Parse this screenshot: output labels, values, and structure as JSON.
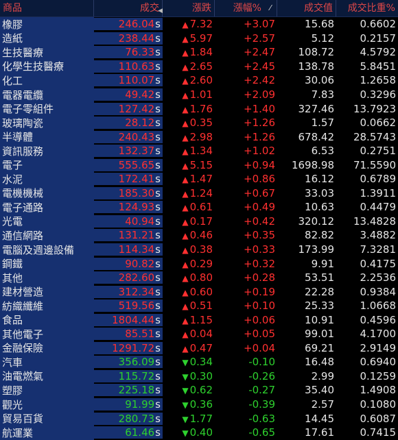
{
  "header": {
    "name": "商品",
    "price": "成交",
    "change": "漲跌",
    "pct": "漲幅%",
    "volume": "成交值",
    "ratio": "成交比重%"
  },
  "price_suffix": "s",
  "colors": {
    "up": "#ff3030",
    "down": "#2ed12e",
    "header_text": "#e04848",
    "highlight": "#163070"
  },
  "rows": [
    {
      "name": "橡膠",
      "price": "246.04",
      "dir": "up",
      "change": "7.32",
      "pct": "+3.07",
      "volume": "15.68",
      "ratio": "0.6602"
    },
    {
      "name": "造紙",
      "price": "238.44",
      "dir": "up",
      "change": "5.97",
      "pct": "+2.57",
      "volume": "5.12",
      "ratio": "0.2157"
    },
    {
      "name": "生技醫療",
      "price": "76.33",
      "dir": "up",
      "change": "1.84",
      "pct": "+2.47",
      "volume": "108.72",
      "ratio": "4.5792"
    },
    {
      "name": "化學生技醫療",
      "price": "110.63",
      "dir": "up",
      "change": "2.65",
      "pct": "+2.45",
      "volume": "138.78",
      "ratio": "5.8451"
    },
    {
      "name": "化工",
      "price": "110.07",
      "dir": "up",
      "change": "2.60",
      "pct": "+2.42",
      "volume": "30.06",
      "ratio": "1.2658"
    },
    {
      "name": "電器電纜",
      "price": "49.42",
      "dir": "up",
      "change": "1.01",
      "pct": "+2.09",
      "volume": "7.83",
      "ratio": "0.3296"
    },
    {
      "name": "電子零組件",
      "price": "127.42",
      "dir": "up",
      "change": "1.76",
      "pct": "+1.40",
      "volume": "327.46",
      "ratio": "13.7923"
    },
    {
      "name": "玻璃陶瓷",
      "price": "28.12",
      "dir": "up",
      "change": "0.35",
      "pct": "+1.26",
      "volume": "1.57",
      "ratio": "0.0662"
    },
    {
      "name": "半導體",
      "price": "240.43",
      "dir": "up",
      "change": "2.98",
      "pct": "+1.26",
      "volume": "678.42",
      "ratio": "28.5743"
    },
    {
      "name": "資訊服務",
      "price": "132.37",
      "dir": "up",
      "change": "1.34",
      "pct": "+1.02",
      "volume": "6.53",
      "ratio": "0.2751"
    },
    {
      "name": "電子",
      "price": "555.65",
      "dir": "up",
      "change": "5.15",
      "pct": "+0.94",
      "volume": "1698.98",
      "ratio": "71.5590"
    },
    {
      "name": "水泥",
      "price": "172.41",
      "dir": "up",
      "change": "1.47",
      "pct": "+0.86",
      "volume": "16.12",
      "ratio": "0.6789"
    },
    {
      "name": "電機機械",
      "price": "185.30",
      "dir": "up",
      "change": "1.24",
      "pct": "+0.67",
      "volume": "33.03",
      "ratio": "1.3911"
    },
    {
      "name": "電子通路",
      "price": "124.93",
      "dir": "up",
      "change": "0.61",
      "pct": "+0.49",
      "volume": "10.63",
      "ratio": "0.4479"
    },
    {
      "name": "光電",
      "price": "40.94",
      "dir": "up",
      "change": "0.17",
      "pct": "+0.42",
      "volume": "320.12",
      "ratio": "13.4828"
    },
    {
      "name": "通信網路",
      "price": "131.21",
      "dir": "up",
      "change": "0.46",
      "pct": "+0.35",
      "volume": "82.82",
      "ratio": "3.4882"
    },
    {
      "name": "電腦及週邊設備",
      "price": "114.34",
      "dir": "up",
      "change": "0.38",
      "pct": "+0.33",
      "volume": "173.99",
      "ratio": "7.3281"
    },
    {
      "name": "鋼鐵",
      "price": "90.82",
      "dir": "up",
      "change": "0.29",
      "pct": "+0.32",
      "volume": "9.91",
      "ratio": "0.4175"
    },
    {
      "name": "其他",
      "price": "282.60",
      "dir": "up",
      "change": "0.80",
      "pct": "+0.28",
      "volume": "53.51",
      "ratio": "2.2536"
    },
    {
      "name": "建材營造",
      "price": "312.34",
      "dir": "up",
      "change": "0.60",
      "pct": "+0.19",
      "volume": "22.28",
      "ratio": "0.9384"
    },
    {
      "name": "紡織纖維",
      "price": "519.56",
      "dir": "up",
      "change": "0.51",
      "pct": "+0.10",
      "volume": "25.33",
      "ratio": "1.0668"
    },
    {
      "name": "食品",
      "price": "1804.44",
      "dir": "up",
      "change": "1.15",
      "pct": "+0.06",
      "volume": "10.91",
      "ratio": "0.4596"
    },
    {
      "name": "其他電子",
      "price": "85.51",
      "dir": "up",
      "change": "0.04",
      "pct": "+0.05",
      "volume": "99.01",
      "ratio": "4.1700"
    },
    {
      "name": "金融保險",
      "price": "1291.72",
      "dir": "up",
      "change": "0.47",
      "pct": "+0.04",
      "volume": "69.21",
      "ratio": "2.9149"
    },
    {
      "name": "汽車",
      "price": "356.09",
      "dir": "down",
      "change": "0.34",
      "pct": "-0.10",
      "volume": "16.48",
      "ratio": "0.6940"
    },
    {
      "name": "油電燃氣",
      "price": "115.72",
      "dir": "down",
      "change": "0.30",
      "pct": "-0.26",
      "volume": "2.99",
      "ratio": "0.1259"
    },
    {
      "name": "塑膠",
      "price": "225.18",
      "dir": "down",
      "change": "0.62",
      "pct": "-0.27",
      "volume": "35.40",
      "ratio": "1.4908"
    },
    {
      "name": "觀光",
      "price": "91.99",
      "dir": "down",
      "change": "0.36",
      "pct": "-0.39",
      "volume": "2.57",
      "ratio": "0.1080"
    },
    {
      "name": "貿易百貨",
      "price": "280.73",
      "dir": "down",
      "change": "1.77",
      "pct": "-0.63",
      "volume": "14.45",
      "ratio": "0.6087"
    },
    {
      "name": "航運業",
      "price": "61.46",
      "dir": "down",
      "change": "0.40",
      "pct": "-0.65",
      "volume": "17.61",
      "ratio": "0.7415"
    }
  ]
}
